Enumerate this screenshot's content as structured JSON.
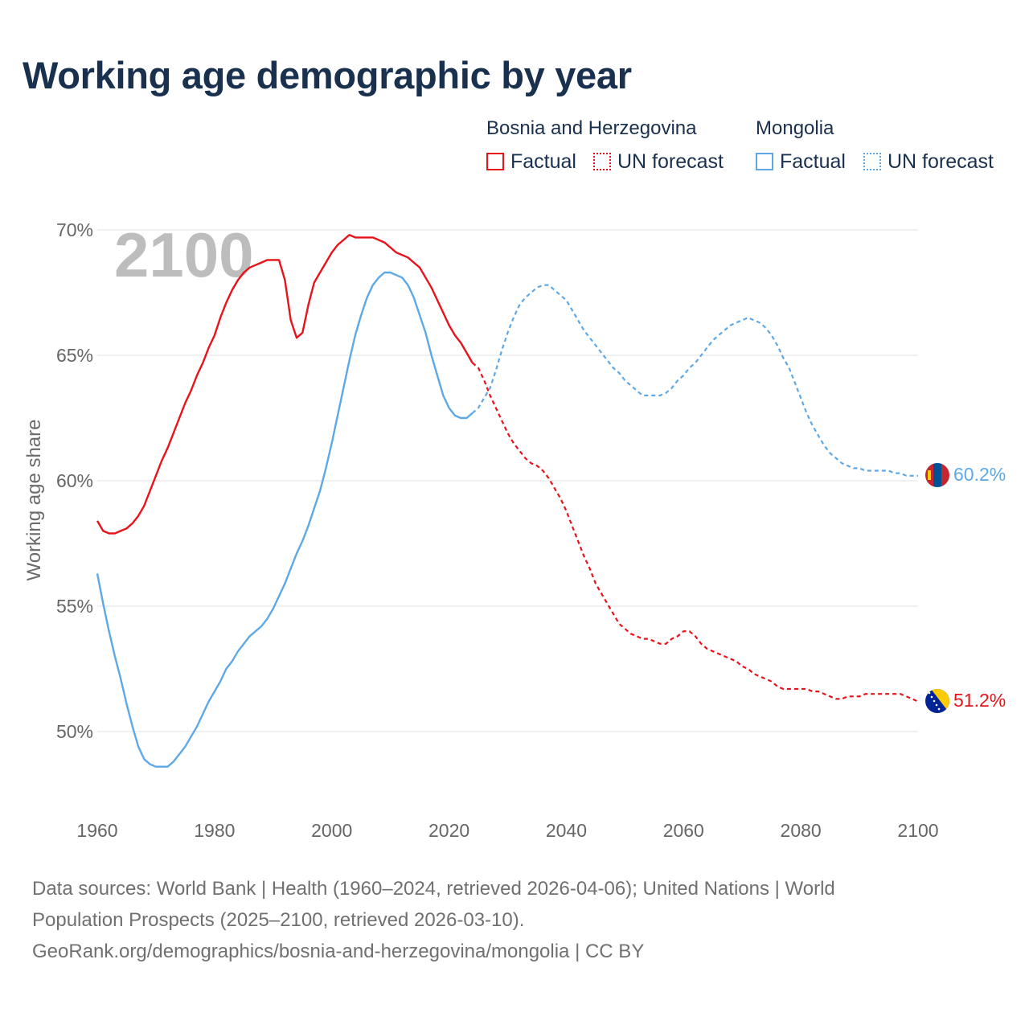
{
  "chart_data": {
    "type": "line",
    "title": "Working age demographic by year",
    "ylabel": "Working age share",
    "xlabel": "",
    "xlim": [
      1960,
      2100
    ],
    "ylim": [
      47,
      71
    ],
    "x_ticks": [
      1960,
      1980,
      2000,
      2020,
      2040,
      2060,
      2080,
      2100
    ],
    "y_ticks": [
      {
        "value": 50,
        "label": "50%"
      },
      {
        "value": 55,
        "label": "55%"
      },
      {
        "value": 60,
        "label": "60%"
      },
      {
        "value": 65,
        "label": "65%"
      },
      {
        "value": 70,
        "label": "70%"
      }
    ],
    "year_watermark": "2100",
    "legend": {
      "groups": [
        {
          "name": "Bosnia and Herzegovina",
          "color": "#e8131a",
          "items": [
            "Factual",
            "UN forecast"
          ]
        },
        {
          "name": "Mongolia",
          "color": "#5ea8e5",
          "items": [
            "Factual",
            "UN forecast"
          ]
        }
      ]
    },
    "series": [
      {
        "name": "Bosnia and Herzegovina",
        "color": "#e8131a",
        "end_label": "51.2%",
        "factual": {
          "x": [
            1960,
            1961,
            1962,
            1963,
            1964,
            1965,
            1966,
            1967,
            1968,
            1969,
            1970,
            1971,
            1972,
            1973,
            1974,
            1975,
            1976,
            1977,
            1978,
            1979,
            1980,
            1981,
            1982,
            1983,
            1984,
            1985,
            1986,
            1987,
            1988,
            1989,
            1990,
            1991,
            1992,
            1993,
            1994,
            1995,
            1996,
            1997,
            1998,
            1999,
            2000,
            2001,
            2002,
            2003,
            2004,
            2005,
            2006,
            2007,
            2008,
            2009,
            2010,
            2011,
            2012,
            2013,
            2014,
            2015,
            2016,
            2017,
            2018,
            2019,
            2020,
            2021,
            2022,
            2023,
            2024
          ],
          "y": [
            58.4,
            58.0,
            57.9,
            57.9,
            58.0,
            58.1,
            58.3,
            58.6,
            59.0,
            59.6,
            60.2,
            60.8,
            61.3,
            61.9,
            62.5,
            63.1,
            63.6,
            64.2,
            64.7,
            65.3,
            65.8,
            66.5,
            67.1,
            67.6,
            68.0,
            68.3,
            68.5,
            68.6,
            68.7,
            68.8,
            68.8,
            68.8,
            68.0,
            66.4,
            65.7,
            65.9,
            67.0,
            67.9,
            68.3,
            68.7,
            69.1,
            69.4,
            69.6,
            69.8,
            69.7,
            69.7,
            69.7,
            69.7,
            69.6,
            69.5,
            69.3,
            69.1,
            69.0,
            68.9,
            68.7,
            68.5,
            68.1,
            67.7,
            67.2,
            66.7,
            66.2,
            65.8,
            65.5,
            65.1,
            64.7
          ]
        },
        "forecast": {
          "x": [
            2024,
            2025,
            2026,
            2027,
            2028,
            2029,
            2030,
            2031,
            2032,
            2033,
            2034,
            2035,
            2036,
            2037,
            2038,
            2039,
            2040,
            2041,
            2042,
            2043,
            2044,
            2045,
            2046,
            2047,
            2048,
            2049,
            2050,
            2051,
            2052,
            2053,
            2054,
            2055,
            2056,
            2057,
            2058,
            2059,
            2060,
            2061,
            2062,
            2063,
            2064,
            2065,
            2066,
            2067,
            2068,
            2069,
            2070,
            2071,
            2072,
            2073,
            2074,
            2075,
            2076,
            2077,
            2078,
            2079,
            2080,
            2081,
            2082,
            2083,
            2084,
            2085,
            2086,
            2087,
            2088,
            2089,
            2090,
            2091,
            2092,
            2093,
            2094,
            2095,
            2096,
            2097,
            2098,
            2099,
            2100
          ],
          "y": [
            64.7,
            64.5,
            64.0,
            63.4,
            62.9,
            62.4,
            61.9,
            61.5,
            61.2,
            60.9,
            60.7,
            60.6,
            60.4,
            60.1,
            59.7,
            59.3,
            58.8,
            58.2,
            57.6,
            57.0,
            56.5,
            55.9,
            55.5,
            55.1,
            54.7,
            54.3,
            54.1,
            53.9,
            53.8,
            53.7,
            53.7,
            53.6,
            53.5,
            53.5,
            53.7,
            53.8,
            54.0,
            54.0,
            53.8,
            53.5,
            53.3,
            53.2,
            53.1,
            53.0,
            52.9,
            52.8,
            52.6,
            52.5,
            52.3,
            52.2,
            52.1,
            52.0,
            51.8,
            51.7,
            51.7,
            51.7,
            51.7,
            51.7,
            51.6,
            51.6,
            51.5,
            51.4,
            51.3,
            51.3,
            51.4,
            51.4,
            51.4,
            51.5,
            51.5,
            51.5,
            51.5,
            51.5,
            51.5,
            51.5,
            51.4,
            51.3,
            51.2
          ]
        }
      },
      {
        "name": "Mongolia",
        "color": "#5ea8e5",
        "end_label": "60.2%",
        "factual": {
          "x": [
            1960,
            1961,
            1962,
            1963,
            1964,
            1965,
            1966,
            1967,
            1968,
            1969,
            1970,
            1971,
            1972,
            1973,
            1974,
            1975,
            1976,
            1977,
            1978,
            1979,
            1980,
            1981,
            1982,
            1983,
            1984,
            1985,
            1986,
            1987,
            1988,
            1989,
            1990,
            1991,
            1992,
            1993,
            1994,
            1995,
            1996,
            1997,
            1998,
            1999,
            2000,
            2001,
            2002,
            2003,
            2004,
            2005,
            2006,
            2007,
            2008,
            2009,
            2010,
            2011,
            2012,
            2013,
            2014,
            2015,
            2016,
            2017,
            2018,
            2019,
            2020,
            2021,
            2022,
            2023,
            2024
          ],
          "y": [
            56.3,
            55.1,
            54.0,
            53.0,
            52.1,
            51.1,
            50.2,
            49.4,
            48.9,
            48.7,
            48.6,
            48.6,
            48.6,
            48.8,
            49.1,
            49.4,
            49.8,
            50.2,
            50.7,
            51.2,
            51.6,
            52.0,
            52.5,
            52.8,
            53.2,
            53.5,
            53.8,
            54.0,
            54.2,
            54.5,
            54.9,
            55.4,
            55.9,
            56.5,
            57.1,
            57.6,
            58.2,
            58.9,
            59.6,
            60.5,
            61.5,
            62.6,
            63.7,
            64.8,
            65.8,
            66.6,
            67.3,
            67.8,
            68.1,
            68.3,
            68.3,
            68.2,
            68.1,
            67.8,
            67.3,
            66.6,
            65.9,
            65.0,
            64.2,
            63.4,
            62.9,
            62.6,
            62.5,
            62.5,
            62.7
          ]
        },
        "forecast": {
          "x": [
            2024,
            2025,
            2026,
            2027,
            2028,
            2029,
            2030,
            2031,
            2032,
            2033,
            2034,
            2035,
            2036,
            2037,
            2038,
            2039,
            2040,
            2041,
            2042,
            2043,
            2044,
            2045,
            2046,
            2047,
            2048,
            2049,
            2050,
            2051,
            2052,
            2053,
            2054,
            2055,
            2056,
            2057,
            2058,
            2059,
            2060,
            2061,
            2062,
            2063,
            2064,
            2065,
            2066,
            2067,
            2068,
            2069,
            2070,
            2071,
            2072,
            2073,
            2074,
            2075,
            2076,
            2077,
            2078,
            2079,
            2080,
            2081,
            2082,
            2083,
            2084,
            2085,
            2086,
            2087,
            2088,
            2089,
            2090,
            2091,
            2092,
            2093,
            2094,
            2095,
            2096,
            2097,
            2098,
            2099,
            2100
          ],
          "y": [
            62.7,
            62.9,
            63.3,
            63.7,
            64.4,
            65.2,
            65.9,
            66.5,
            67.0,
            67.3,
            67.5,
            67.7,
            67.8,
            67.8,
            67.6,
            67.4,
            67.2,
            66.8,
            66.4,
            66.0,
            65.7,
            65.4,
            65.1,
            64.8,
            64.5,
            64.3,
            64.0,
            63.8,
            63.6,
            63.4,
            63.4,
            63.4,
            63.4,
            63.5,
            63.7,
            64.0,
            64.2,
            64.5,
            64.7,
            65.0,
            65.3,
            65.6,
            65.8,
            66.0,
            66.2,
            66.3,
            66.4,
            66.5,
            66.4,
            66.3,
            66.1,
            65.8,
            65.4,
            64.9,
            64.5,
            63.9,
            63.3,
            62.7,
            62.2,
            61.8,
            61.4,
            61.1,
            60.9,
            60.7,
            60.6,
            60.5,
            60.5,
            60.4,
            60.4,
            60.4,
            60.4,
            60.4,
            60.3,
            60.3,
            60.2,
            60.2,
            60.2
          ]
        }
      }
    ]
  },
  "footer": {
    "line1": "Data sources: World Bank | Health (1960–2024, retrieved 2026-04-06); United Nations | World",
    "line2": "Population Prospects (2025–2100, retrieved 2026-03-10).",
    "line3": "GeoRank.org/demographics/bosnia-and-herzegovina/mongolia | CC BY"
  }
}
